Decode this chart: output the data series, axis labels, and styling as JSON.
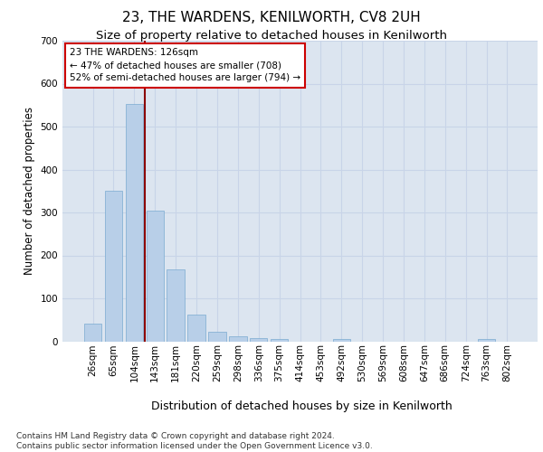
{
  "title": "23, THE WARDENS, KENILWORTH, CV8 2UH",
  "subtitle": "Size of property relative to detached houses in Kenilworth",
  "xlabel": "Distribution of detached houses by size in Kenilworth",
  "ylabel": "Number of detached properties",
  "bar_values": [
    42,
    350,
    553,
    305,
    168,
    62,
    23,
    11,
    8,
    5,
    0,
    0,
    6,
    0,
    0,
    0,
    0,
    0,
    0,
    6,
    0
  ],
  "bar_labels": [
    "26sqm",
    "65sqm",
    "104sqm",
    "143sqm",
    "181sqm",
    "220sqm",
    "259sqm",
    "298sqm",
    "336sqm",
    "375sqm",
    "414sqm",
    "453sqm",
    "492sqm",
    "530sqm",
    "569sqm",
    "608sqm",
    "647sqm",
    "686sqm",
    "724sqm",
    "763sqm",
    "802sqm"
  ],
  "bar_color": "#b8cfe8",
  "bar_edge_color": "#7aaad0",
  "vline_x": 2.5,
  "vline_color": "#8b0000",
  "annotation_box_text": "23 THE WARDENS: 126sqm\n← 47% of detached houses are smaller (708)\n52% of semi-detached houses are larger (794) →",
  "annotation_box_color": "#cc0000",
  "ylim": [
    0,
    700
  ],
  "yticks": [
    0,
    100,
    200,
    300,
    400,
    500,
    600,
    700
  ],
  "grid_color": "#c8d4e8",
  "background_color": "#dce5f0",
  "footer_text": "Contains HM Land Registry data © Crown copyright and database right 2024.\nContains public sector information licensed under the Open Government Licence v3.0.",
  "title_fontsize": 11,
  "subtitle_fontsize": 9.5,
  "xlabel_fontsize": 9,
  "ylabel_fontsize": 8.5,
  "tick_fontsize": 7.5,
  "footer_fontsize": 6.5
}
